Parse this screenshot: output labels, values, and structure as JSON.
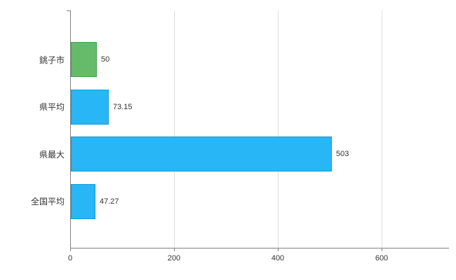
{
  "chart_data": {
    "type": "bar",
    "orientation": "horizontal",
    "title": "",
    "xlabel": "",
    "ylabel": "",
    "categories": [
      "銚子市",
      "県平均",
      "県最大",
      "全国平均"
    ],
    "values": [
      50,
      73.15,
      503,
      47.27
    ],
    "value_labels": [
      "50",
      "73.15",
      "503",
      "47.27"
    ],
    "bar_fill_colors": [
      "#66bb6a",
      "#29b6f6",
      "#29b6f6",
      "#29b6f6"
    ],
    "bar_border_colors": [
      "#43a047",
      "#0f9ad6",
      "#0f9ad6",
      "#0f9ad6"
    ],
    "xlim": [
      0,
      600
    ],
    "x_ticks": [
      0,
      200,
      400,
      600
    ],
    "x_tick_labels": [
      "0",
      "200",
      "400",
      "600"
    ],
    "grid": true,
    "legend_position": "none"
  },
  "colors": {
    "axis": "#808080",
    "gridline": "#dddddd",
    "text": "#333333",
    "background": "#ffffff"
  }
}
